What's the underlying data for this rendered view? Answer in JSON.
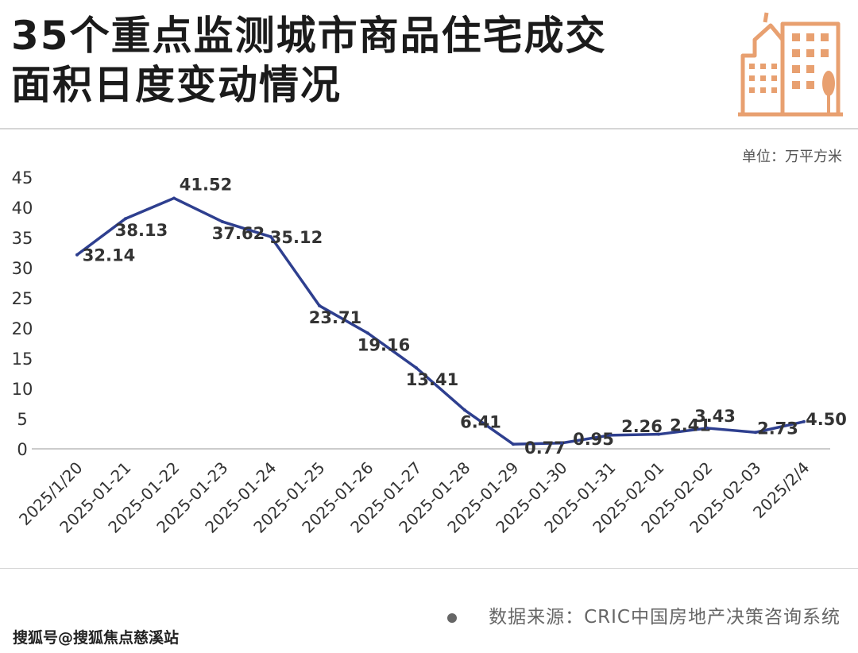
{
  "title": {
    "line1": "35个重点监测城市商品住宅成交",
    "line2": "面积日度变动情况"
  },
  "unit_label": "单位：万平方米",
  "source_label": "数据来源：CRIC中国房地产决策咨询系统",
  "footer_label": "搜狐号@搜狐焦点慈溪站",
  "colors": {
    "line": "#2e3f8f",
    "logo": "#e8a070",
    "axis": "#333333"
  },
  "chart_data": {
    "type": "line",
    "title": "35个重点监测城市商品住宅成交面积日度变动情况",
    "ylabel": "单位：万平方米",
    "ylim": [
      0,
      45
    ],
    "yticks": [
      "0",
      "5",
      "10",
      "15",
      "20",
      "25",
      "30",
      "35",
      "40",
      "45"
    ],
    "grid": false,
    "categories": [
      "2025/1/20",
      "2025-01-21",
      "2025-01-22",
      "2025-01-23",
      "2025-01-24",
      "2025-01-25",
      "2025-01-26",
      "2025-01-27",
      "2025-01-28",
      "2025-01-29",
      "2025-01-30",
      "2025-01-31",
      "2025-02-01",
      "2025-02-02",
      "2025-02-03",
      "2025/2/4"
    ],
    "series": [
      {
        "values": [
          32.14,
          38.13,
          41.52,
          37.62,
          35.12,
          23.71,
          19.16,
          13.41,
          6.41,
          0.77,
          0.95,
          2.26,
          2.41,
          3.43,
          2.73,
          4.5
        ],
        "labels": [
          "32.14",
          "38.13",
          "41.52",
          "37.62",
          "35.12",
          "23.71",
          "19.16",
          "13.41",
          "6.41",
          "0.77",
          "0.95",
          "2.26",
          "2.41",
          "3.43",
          "2.73",
          "4.50"
        ]
      }
    ]
  }
}
